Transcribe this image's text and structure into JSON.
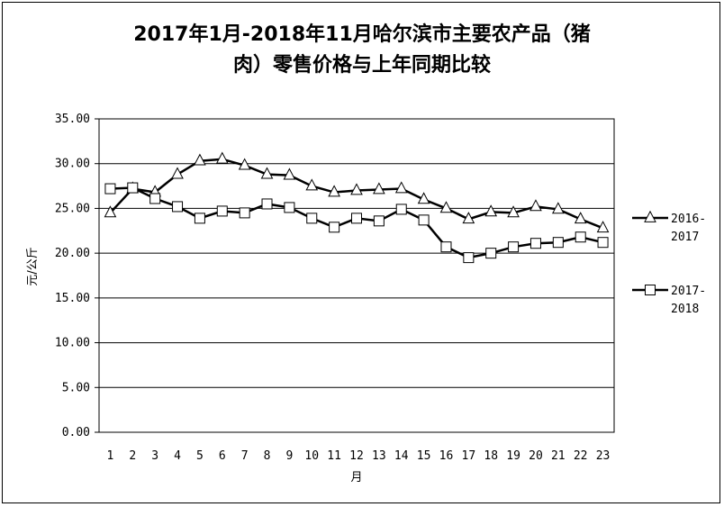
{
  "chart_data": {
    "type": "line",
    "title_line1": "2017年1月-2018年11月哈尔滨市主要农产品（猪",
    "title_line2": "肉）零售价格与上年同期比较",
    "xlabel": "月",
    "ylabel": "元/公斤",
    "ylim": [
      0,
      35
    ],
    "yticks": [
      "0.00",
      "5.00",
      "10.00",
      "15.00",
      "20.00",
      "25.00",
      "30.00",
      "35.00"
    ],
    "categories": [
      "1",
      "2",
      "3",
      "4",
      "5",
      "6",
      "7",
      "8",
      "9",
      "10",
      "11",
      "12",
      "13",
      "14",
      "15",
      "16",
      "17",
      "18",
      "19",
      "20",
      "21",
      "22",
      "23"
    ],
    "grid": true,
    "legend_position": "right",
    "series": [
      {
        "name_line1": "2016-",
        "name_line2": "2017",
        "marker": "triangle",
        "values": [
          24.5,
          27.2,
          26.8,
          28.8,
          30.3,
          30.5,
          29.8,
          28.8,
          28.7,
          27.5,
          26.8,
          27.0,
          27.1,
          27.2,
          26.0,
          25.0,
          23.8,
          24.6,
          24.5,
          25.2,
          24.9,
          23.8,
          22.8
        ]
      },
      {
        "name_line1": "2017-",
        "name_line2": "2018",
        "marker": "square",
        "values": [
          27.2,
          27.3,
          26.1,
          25.2,
          23.9,
          24.7,
          24.5,
          25.5,
          25.1,
          23.9,
          22.9,
          23.9,
          23.6,
          24.9,
          23.7,
          20.7,
          19.5,
          20.0,
          20.7,
          21.1,
          21.2,
          21.8,
          21.2
        ]
      }
    ]
  }
}
